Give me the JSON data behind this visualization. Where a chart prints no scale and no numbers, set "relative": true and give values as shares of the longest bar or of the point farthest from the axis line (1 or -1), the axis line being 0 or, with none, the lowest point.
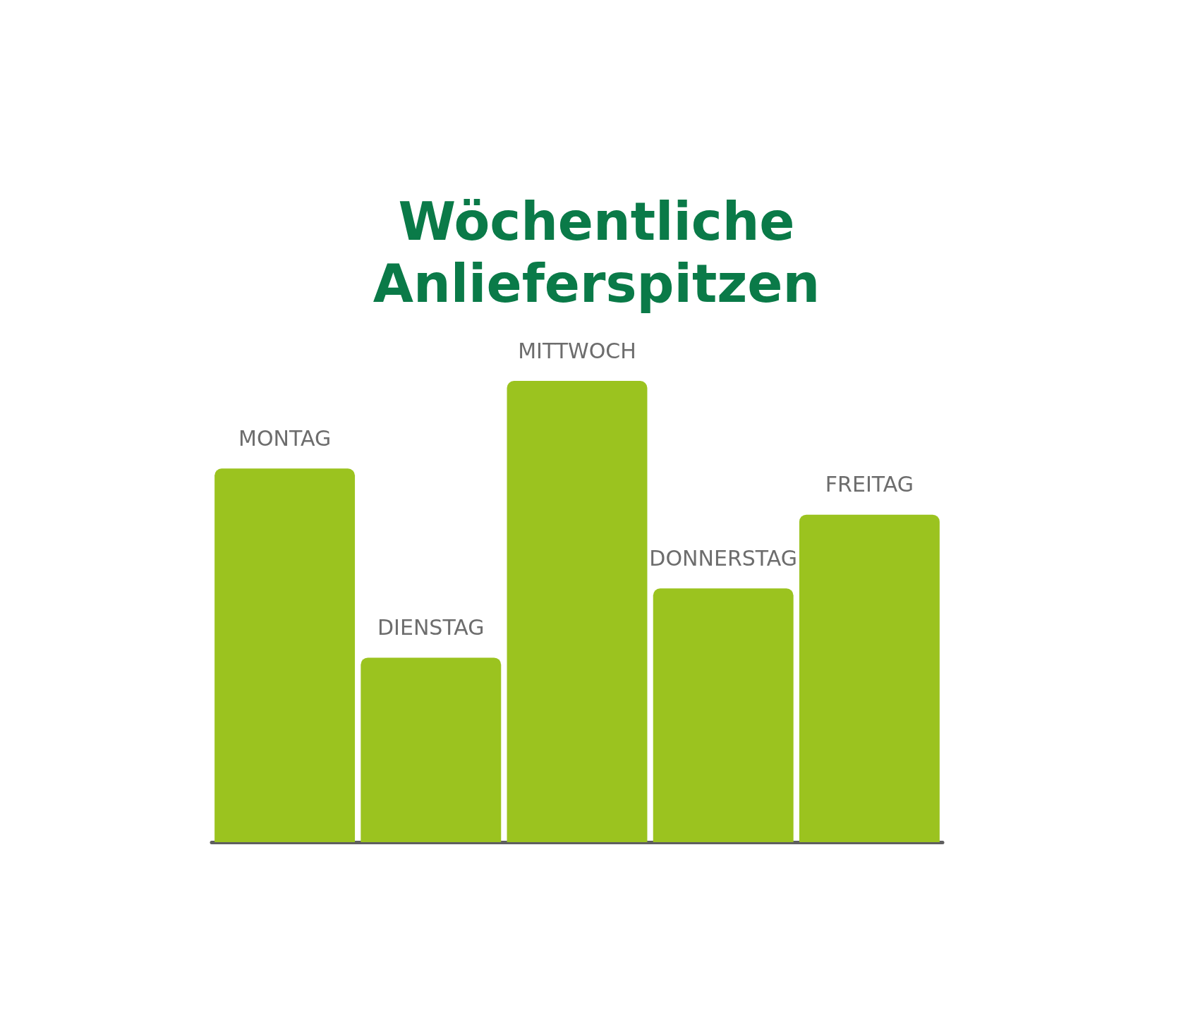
{
  "chart_data": {
    "type": "bar",
    "title": "Wöchentliche\nAnlieferspitzen",
    "categories": [
      "MONTAG",
      "DIENSTAG",
      "MITTWOCH",
      "DONNERSTAG",
      "FREITAG"
    ],
    "values": [
      0.81,
      0.4,
      1,
      0.55,
      0.71
    ],
    "color": "#9bc31f",
    "relative": true
  }
}
